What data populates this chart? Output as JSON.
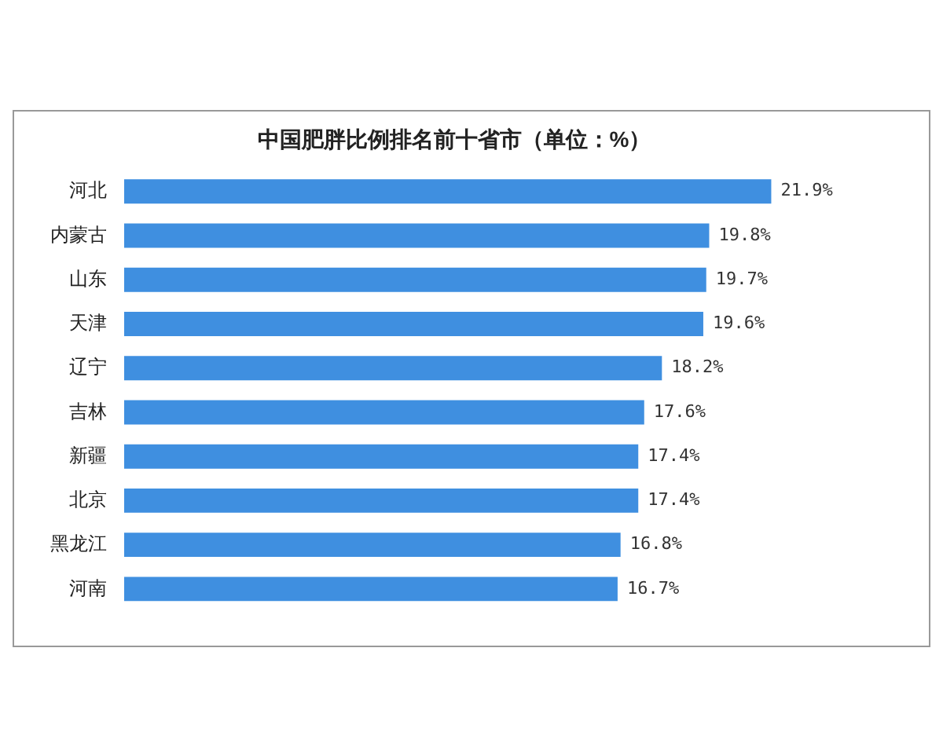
{
  "chart_data": {
    "type": "bar",
    "orientation": "horizontal",
    "title": "中国肥胖比例排名前十省市（单位：%）",
    "categories": [
      "河北",
      "内蒙古",
      "山东",
      "天津",
      "辽宁",
      "吉林",
      "新疆",
      "北京",
      "黑龙江",
      "河南"
    ],
    "values": [
      21.9,
      19.8,
      19.7,
      19.6,
      18.2,
      17.6,
      17.4,
      17.4,
      16.8,
      16.7
    ],
    "value_labels": [
      "21.9%",
      "19.8%",
      "19.7%",
      "19.6%",
      "18.2%",
      "17.6%",
      "17.4%",
      "17.4%",
      "16.8%",
      "16.7%"
    ],
    "color": "#3f8fe0",
    "grid": false,
    "legend": false
  }
}
